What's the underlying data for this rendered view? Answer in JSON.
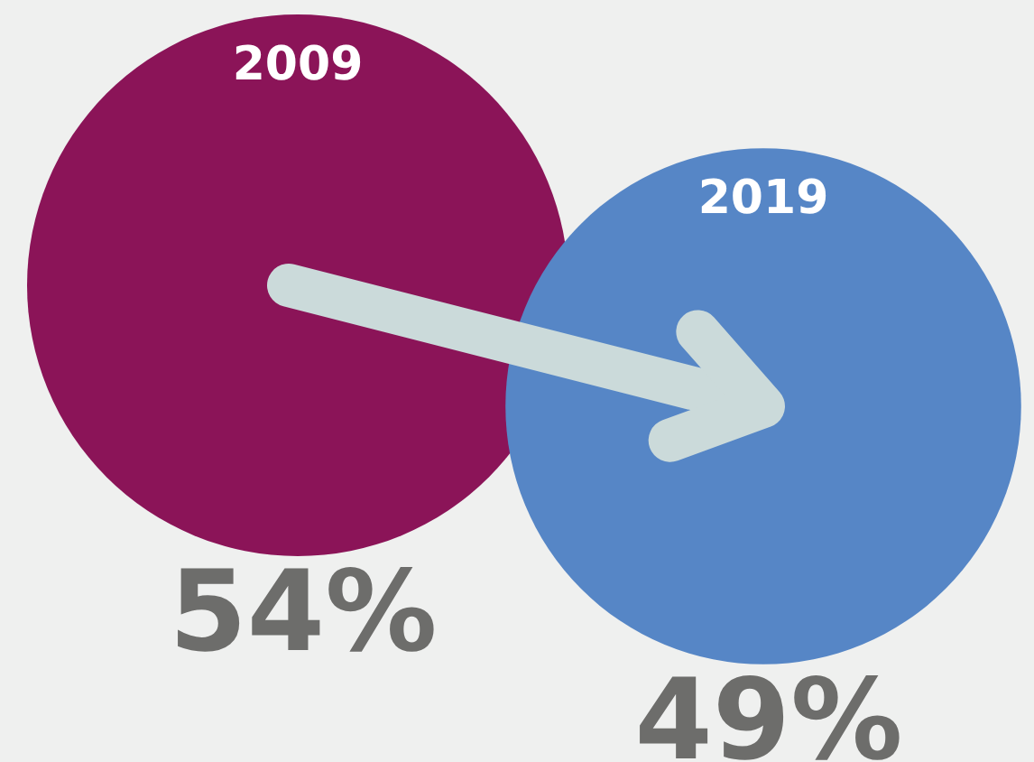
{
  "chart_data": {
    "type": "other",
    "categories": [
      "2009",
      "2019"
    ],
    "values": [
      54,
      49
    ],
    "value_labels": [
      "54%",
      "49%"
    ],
    "colors": [
      "#8b1458",
      "#5686c6"
    ]
  }
}
